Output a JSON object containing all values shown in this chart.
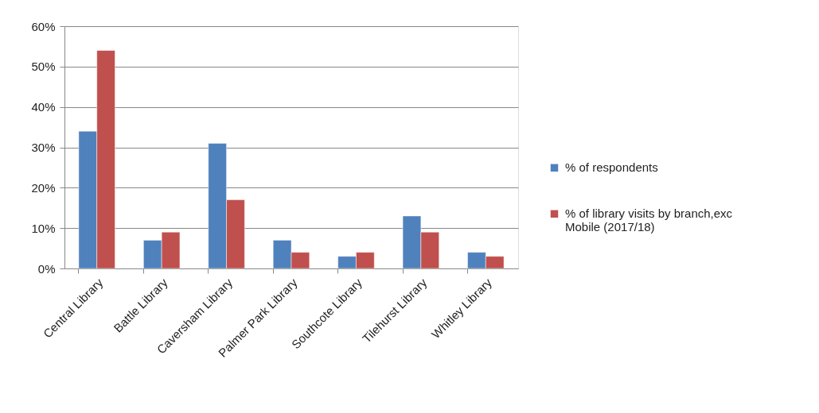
{
  "chart_data": {
    "type": "bar",
    "categories": [
      "Central Library",
      "Battle Library",
      "Caversham Library",
      "Palmer Park Library",
      "Southcote Library",
      "Tilehurst Library",
      "Whitley Library"
    ],
    "series": [
      {
        "name": "% of respondents",
        "color": "#4f81bd",
        "values": [
          34,
          7,
          31,
          7,
          3,
          13,
          4
        ]
      },
      {
        "name": "% of library visits by branch,exc Mobile (2017/18)",
        "color": "#c0504d",
        "values": [
          54,
          9,
          17,
          4,
          4,
          9,
          3
        ]
      }
    ],
    "ylim": [
      0,
      60
    ],
    "yticks": [
      {
        "value": 0,
        "label": "0%"
      },
      {
        "value": 10,
        "label": "10%"
      },
      {
        "value": 20,
        "label": "20%"
      },
      {
        "value": 30,
        "label": "30%"
      },
      {
        "value": 40,
        "label": "40%"
      },
      {
        "value": 50,
        "label": "50%"
      },
      {
        "value": 60,
        "label": "60%"
      }
    ],
    "grid": "y",
    "legend": "right"
  }
}
